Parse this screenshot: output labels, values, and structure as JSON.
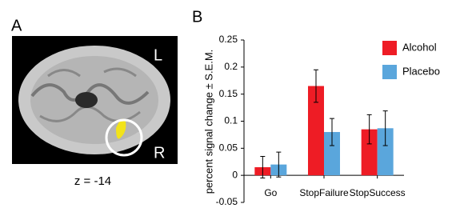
{
  "panel_a": {
    "label": "A",
    "left_marker": "L",
    "right_marker": "R",
    "caption": "z = -14"
  },
  "chart_data": {
    "type": "bar",
    "panel_label": "B",
    "y_label": "percent signal change ± S.E.M.",
    "categories": [
      "Go",
      "StopFailure",
      "StopSuccess"
    ],
    "series": [
      {
        "name": "Alcohol",
        "color": "#ee1c25",
        "values": [
          0.015,
          0.165,
          0.085
        ],
        "errors": [
          0.02,
          0.03,
          0.027
        ]
      },
      {
        "name": "Placebo",
        "color": "#5aa6dc",
        "values": [
          0.02,
          0.08,
          0.087
        ],
        "errors": [
          0.023,
          0.025,
          0.032
        ]
      }
    ],
    "ylim": [
      -0.05,
      0.25
    ],
    "yticks": [
      -0.05,
      0,
      0.05,
      0.1,
      0.15,
      0.2,
      0.25
    ],
    "legend": "upper-right"
  }
}
